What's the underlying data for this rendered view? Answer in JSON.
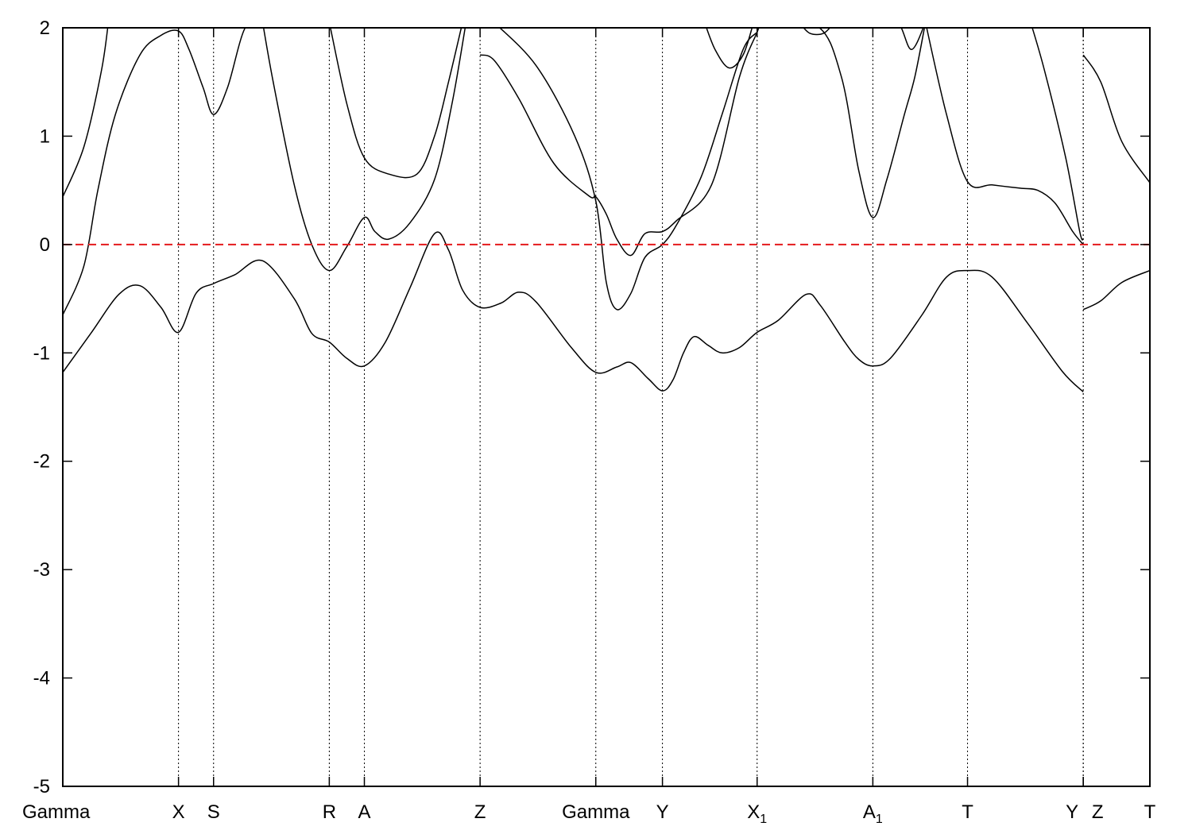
{
  "chart_data": {
    "type": "line",
    "title": "",
    "xlabel": "",
    "ylabel": "",
    "ylim": [
      -5,
      2
    ],
    "yticks": [
      2,
      1,
      0,
      -1,
      -2,
      -3,
      -4,
      -5
    ],
    "xlim": [
      0,
      31
    ],
    "grid": false,
    "legend": "none",
    "kpoints": [
      {
        "x": 0,
        "label": "Gamma",
        "sub": ""
      },
      {
        "x": 3.3,
        "label": "X",
        "sub": ""
      },
      {
        "x": 4.3,
        "label": "S",
        "sub": ""
      },
      {
        "x": 7.6,
        "label": "R",
        "sub": ""
      },
      {
        "x": 8.6,
        "label": "A",
        "sub": ""
      },
      {
        "x": 11.9,
        "label": "Z",
        "sub": ""
      },
      {
        "x": 15.2,
        "label": "Gamma",
        "sub": ""
      },
      {
        "x": 17.1,
        "label": "Y",
        "sub": ""
      },
      {
        "x": 19.8,
        "label": "X",
        "sub": "1"
      },
      {
        "x": 23.1,
        "label": "A",
        "sub": "1"
      },
      {
        "x": 25.8,
        "label": "T",
        "sub": ""
      },
      {
        "x": 29.1,
        "label": "Y",
        "sub": ""
      },
      {
        "x": 29.1,
        "label": "Z",
        "sub": ""
      },
      {
        "x": 31,
        "label": "T",
        "sub": ""
      }
    ],
    "fermi_level": 0,
    "colors": {
      "bands": "#000000",
      "fermi": "#e41a1c",
      "frame": "#000000"
    },
    "series": [
      {
        "values": [
          [
            0,
            -1.18
          ],
          [
            0.8,
            -0.82
          ],
          [
            1.6,
            -0.46
          ],
          [
            2.2,
            -0.38
          ],
          [
            2.8,
            -0.58
          ],
          [
            3.3,
            -0.81
          ],
          [
            3.8,
            -0.45
          ],
          [
            4.3,
            -0.36
          ],
          [
            4.9,
            -0.28
          ],
          [
            5.7,
            -0.15
          ],
          [
            6.6,
            -0.5
          ],
          [
            7.1,
            -0.82
          ],
          [
            7.6,
            -0.9
          ],
          [
            8.1,
            -1.05
          ],
          [
            8.6,
            -1.12
          ],
          [
            9.2,
            -0.9
          ],
          [
            9.9,
            -0.4
          ],
          [
            10.6,
            0.1
          ],
          [
            11.0,
            -0.05
          ],
          [
            11.4,
            -0.42
          ],
          [
            11.9,
            -0.58
          ],
          [
            12.5,
            -0.54
          ],
          [
            13.0,
            -0.44
          ],
          [
            13.5,
            -0.53
          ],
          [
            14.5,
            -0.95
          ],
          [
            15.2,
            -1.18
          ],
          [
            15.8,
            -1.13
          ],
          [
            16.2,
            -1.09
          ],
          [
            16.7,
            -1.24
          ],
          [
            17.1,
            -1.35
          ],
          [
            17.4,
            -1.25
          ],
          [
            17.7,
            -1.0
          ],
          [
            18.0,
            -0.85
          ],
          [
            18.4,
            -0.93
          ],
          [
            18.8,
            -1.0
          ],
          [
            19.3,
            -0.95
          ],
          [
            19.8,
            -0.81
          ],
          [
            20.4,
            -0.7
          ],
          [
            21.2,
            -0.46
          ],
          [
            21.6,
            -0.56
          ],
          [
            22.3,
            -0.9
          ],
          [
            22.7,
            -1.06
          ],
          [
            23.1,
            -1.12
          ],
          [
            23.6,
            -1.05
          ],
          [
            24.5,
            -0.65
          ],
          [
            25.2,
            -0.3
          ],
          [
            25.8,
            -0.24
          ],
          [
            26.5,
            -0.3
          ],
          [
            27.5,
            -0.72
          ],
          [
            28.5,
            -1.17
          ],
          [
            29.1,
            -1.36
          ]
        ]
      },
      {
        "values": [
          [
            29.1,
            -0.6
          ],
          [
            29.6,
            -0.52
          ],
          [
            30.2,
            -0.35
          ],
          [
            31,
            -0.24
          ]
        ]
      },
      {
        "values": [
          [
            0,
            -0.65
          ],
          [
            0.6,
            -0.2
          ],
          [
            1.0,
            0.5
          ],
          [
            1.5,
            1.2
          ],
          [
            2.2,
            1.75
          ],
          [
            2.8,
            1.93
          ],
          [
            3.3,
            1.97
          ],
          [
            3.6,
            1.8
          ],
          [
            4.0,
            1.45
          ],
          [
            4.3,
            1.2
          ],
          [
            4.7,
            1.45
          ],
          [
            5.2,
            2.0
          ],
          [
            5.7,
            2.05
          ]
        ]
      },
      {
        "values": [
          [
            5.7,
            2.05
          ],
          [
            6.0,
            1.5
          ],
          [
            6.6,
            0.55
          ],
          [
            7.1,
            0.0
          ],
          [
            7.6,
            -0.24
          ],
          [
            8.1,
            -0.02
          ],
          [
            8.6,
            0.25
          ],
          [
            8.9,
            0.12
          ],
          [
            9.3,
            0.05
          ],
          [
            9.9,
            0.2
          ],
          [
            10.6,
            0.6
          ],
          [
            11.1,
            1.3
          ],
          [
            11.5,
            2.05
          ]
        ]
      },
      {
        "values": [
          [
            11.9,
            1.75
          ],
          [
            12.3,
            1.7
          ],
          [
            13.0,
            1.35
          ],
          [
            14.0,
            0.75
          ],
          [
            15.0,
            0.45
          ],
          [
            15.2,
            0.44
          ],
          [
            15.5,
            0.28
          ],
          [
            15.8,
            0.05
          ],
          [
            16.2,
            -0.1
          ],
          [
            16.6,
            0.1
          ],
          [
            17.1,
            0.12
          ],
          [
            17.5,
            0.22
          ],
          [
            18.5,
            0.55
          ],
          [
            19.3,
            1.55
          ],
          [
            19.8,
            1.96
          ],
          [
            19.9,
            2.05
          ]
        ]
      },
      {
        "values": [
          [
            19.9,
            2.05
          ],
          [
            21.5,
            2.02
          ],
          [
            22.2,
            1.55
          ],
          [
            22.7,
            0.68
          ],
          [
            23.1,
            0.25
          ],
          [
            23.5,
            0.6
          ],
          [
            24.0,
            1.2
          ],
          [
            24.3,
            1.55
          ],
          [
            24.6,
            2.05
          ]
        ]
      },
      {
        "values": [
          [
            24.6,
            2.05
          ],
          [
            25.2,
            1.2
          ],
          [
            25.8,
            0.58
          ],
          [
            26.5,
            0.55
          ],
          [
            27.3,
            0.52
          ],
          [
            27.8,
            0.5
          ],
          [
            28.3,
            0.38
          ],
          [
            28.8,
            0.12
          ],
          [
            29.1,
            0.0
          ]
        ]
      },
      {
        "values": [
          [
            29.1,
            1.75
          ],
          [
            29.6,
            1.5
          ],
          [
            30.2,
            0.95
          ],
          [
            31,
            0.57
          ]
        ]
      },
      {
        "values": [
          [
            0,
            0.44
          ],
          [
            0.6,
            0.9
          ],
          [
            1.1,
            1.6
          ],
          [
            1.3,
            2.05
          ]
        ]
      },
      {
        "values": [
          [
            7.6,
            2.05
          ],
          [
            8.1,
            1.3
          ],
          [
            8.6,
            0.8
          ],
          [
            9.3,
            0.65
          ],
          [
            10.1,
            0.65
          ],
          [
            10.6,
            1.0
          ],
          [
            11.0,
            1.5
          ],
          [
            11.4,
            2.05
          ]
        ]
      },
      {
        "values": [
          [
            12.3,
            2.05
          ],
          [
            13.5,
            1.65
          ],
          [
            14.6,
            1.0
          ],
          [
            15.2,
            0.4
          ],
          [
            15.5,
            -0.35
          ],
          [
            15.8,
            -0.6
          ],
          [
            16.2,
            -0.45
          ],
          [
            16.6,
            -0.12
          ],
          [
            17.1,
            0.0
          ],
          [
            17.5,
            0.18
          ],
          [
            18.2,
            0.62
          ],
          [
            18.8,
            1.2
          ],
          [
            19.4,
            1.8
          ],
          [
            19.8,
            1.96
          ]
        ]
      },
      {
        "values": [
          [
            18.3,
            2.05
          ],
          [
            18.6,
            1.8
          ],
          [
            19.0,
            1.63
          ],
          [
            19.4,
            1.75
          ],
          [
            19.7,
            2.05
          ]
        ]
      },
      {
        "values": [
          [
            21.0,
            2.05
          ],
          [
            21.3,
            1.95
          ],
          [
            21.7,
            1.95
          ],
          [
            22.0,
            2.05
          ]
        ]
      },
      {
        "values": [
          [
            23.1,
            2.05
          ],
          [
            23.8,
            2.05
          ],
          [
            24.2,
            1.8
          ],
          [
            24.6,
            2.05
          ]
        ]
      },
      {
        "values": [
          [
            27.6,
            2.05
          ],
          [
            28.0,
            1.6
          ],
          [
            28.6,
            0.8
          ],
          [
            29.0,
            0.12
          ],
          [
            29.1,
            0.05
          ]
        ]
      }
    ]
  }
}
